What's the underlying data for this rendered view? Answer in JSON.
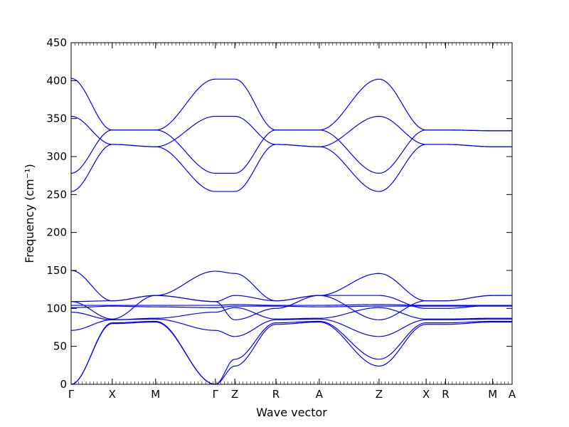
{
  "chart_data": {
    "type": "line",
    "title": "",
    "xlabel": "Wave vector",
    "ylabel": "Frequency (cm⁻¹)",
    "ylim": [
      0,
      450
    ],
    "y_ticks": [
      0,
      50,
      100,
      150,
      200,
      250,
      300,
      350,
      400,
      450
    ],
    "grid": false,
    "legend": "none",
    "line_color": "#0000ff",
    "x_range": [
      0,
      5.9
    ],
    "high_symmetry_points": [
      {
        "label": "Γ",
        "x": 0.0
      },
      {
        "label": "X",
        "x": 0.55
      },
      {
        "label": "M",
        "x": 1.13
      },
      {
        "label": "Γ",
        "x": 1.93
      },
      {
        "label": "Z",
        "x": 2.19
      },
      {
        "label": "R",
        "x": 2.74
      },
      {
        "label": "A",
        "x": 3.32
      },
      {
        "label": "Z",
        "x": 4.12
      },
      {
        "label": "X",
        "x": 4.75
      },
      {
        "label": "R",
        "x": 5.01
      },
      {
        "label": "M",
        "x": 5.64
      },
      {
        "label": "A",
        "x": 5.9
      }
    ],
    "series": [
      {
        "x": [
          0,
          0.55,
          1.13,
          1.93,
          2.19,
          2.74,
          3.32,
          4.12,
          4.75,
          5.01,
          5.64,
          5.9
        ],
        "values": [
          254,
          316,
          313,
          254,
          254,
          316,
          313,
          254,
          316,
          316,
          313,
          313
        ]
      },
      {
        "x": [
          0,
          0.55,
          1.13,
          1.93,
          2.19,
          2.74,
          3.32,
          4.12,
          4.75,
          5.01,
          5.64,
          5.9
        ],
        "values": [
          278,
          335,
          335,
          278,
          278,
          335,
          335,
          278,
          335,
          335,
          334,
          334
        ]
      },
      {
        "x": [
          0,
          0.55,
          1.13,
          1.93,
          2.19,
          2.74,
          3.32,
          4.12,
          4.75,
          5.01,
          5.64,
          5.9
        ],
        "values": [
          353,
          316,
          313,
          353,
          353,
          316,
          313,
          353,
          316,
          316,
          313,
          313
        ]
      },
      {
        "x": [
          0,
          0.55,
          1.13,
          1.93,
          2.19,
          2.74,
          3.32,
          4.12,
          4.75,
          5.01,
          5.64,
          5.9
        ],
        "values": [
          403,
          335,
          335,
          402,
          402,
          335,
          335,
          402,
          335,
          335,
          334,
          334
        ]
      },
      {
        "x": [
          0,
          0.55,
          1.13,
          1.93,
          2.19,
          2.74,
          3.32,
          4.12,
          4.75,
          5.01,
          5.64,
          5.9
        ],
        "values": [
          0,
          80,
          82,
          0,
          24,
          79,
          82,
          24,
          79,
          79,
          82,
          82
        ]
      },
      {
        "x": [
          0,
          0.55,
          1.13,
          1.93,
          2.19,
          2.74,
          3.32,
          4.12,
          4.75,
          5.01,
          5.64,
          5.9
        ],
        "values": [
          0,
          81,
          83,
          0,
          33,
          81,
          83,
          33,
          81,
          81,
          83,
          83
        ]
      },
      {
        "x": [
          0,
          0.55,
          1.13,
          1.93,
          2.19,
          2.74,
          3.32,
          4.12,
          4.75,
          5.01,
          5.64,
          5.9
        ],
        "values": [
          71,
          85,
          86,
          71,
          63,
          85,
          86,
          63,
          85,
          85,
          86,
          86
        ]
      },
      {
        "x": [
          0,
          0.55,
          1.13,
          1.93,
          2.19,
          2.74,
          3.32,
          4.12,
          4.75,
          5.01,
          5.64,
          5.9
        ],
        "values": [
          95,
          85,
          87,
          95,
          101,
          86,
          87,
          101,
          86,
          86,
          87,
          87
        ]
      },
      {
        "x": [
          0,
          0.55,
          1.13,
          1.93,
          2.19,
          2.74,
          3.32,
          4.12,
          4.75,
          5.01,
          5.64,
          5.9
        ],
        "values": [
          101,
          103,
          102,
          101,
          103,
          103,
          102,
          103,
          103,
          103,
          103,
          103
        ]
      },
      {
        "x": [
          0,
          0.55,
          1.13,
          1.93,
          2.19,
          2.74,
          3.32,
          4.12,
          4.75,
          5.01,
          5.64,
          5.9
        ],
        "values": [
          104,
          104,
          104,
          104,
          105,
          104,
          104,
          105,
          104,
          104,
          104,
          104
        ]
      },
      {
        "x": [
          0,
          0.55,
          1.13,
          1.93,
          2.19,
          2.74,
          3.32,
          4.12,
          4.75,
          5.01,
          5.64,
          5.9
        ],
        "values": [
          109,
          110,
          117,
          109,
          117,
          110,
          117,
          85,
          110,
          110,
          117,
          117
        ]
      },
      {
        "x": [
          0,
          0.55,
          1.13,
          1.93,
          2.19,
          2.74,
          3.32,
          4.12,
          4.75,
          5.01,
          5.64,
          5.9
        ],
        "values": [
          150,
          110,
          117,
          149,
          146,
          110,
          117,
          146,
          110,
          110,
          117,
          117
        ]
      },
      {
        "x": [
          0,
          0.55,
          1.13,
          1.93,
          2.19,
          2.74,
          3.32,
          4.12,
          4.75,
          5.01,
          5.64,
          5.9
        ],
        "values": [
          109,
          86,
          117,
          109,
          85,
          100,
          117,
          117,
          100,
          100,
          104,
          104
        ]
      }
    ]
  }
}
